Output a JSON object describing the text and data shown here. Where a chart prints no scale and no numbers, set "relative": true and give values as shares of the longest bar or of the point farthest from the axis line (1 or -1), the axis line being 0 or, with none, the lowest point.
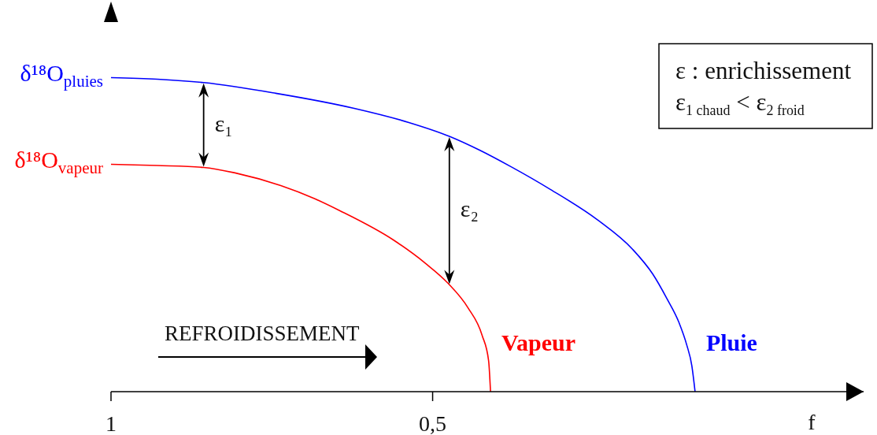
{
  "chart_data": {
    "type": "line",
    "relative": true,
    "xlabel": "f",
    "xlim": [
      1,
      -0.17
    ],
    "xticks": [
      1,
      {
        "value": 0.5,
        "label": "0,5"
      }
    ],
    "line_style": "solid",
    "series": [
      {
        "name": "Vapeur",
        "color": "#ff0000",
        "x": [
          1,
          0.928,
          0.856,
          0.806,
          0.736,
          0.683,
          0.644,
          0.561,
          0.512,
          0.476,
          0.445,
          0.423,
          0.413,
          0.41
        ],
        "values": [
          0.724,
          0.72,
          0.714,
          0.696,
          0.656,
          0.614,
          0.576,
          0.483,
          0.41,
          0.345,
          0.267,
          0.179,
          0.099,
          0
        ]
      },
      {
        "name": "Pluie",
        "color": "#0000ff",
        "x": [
          1,
          0.928,
          0.856,
          0.744,
          0.622,
          0.537,
          0.474,
          0.427,
          0.378,
          0.317,
          0.243,
          0.189,
          0.158,
          0.136,
          0.117,
          0.105,
          0.097,
          0.092
        ],
        "values": [
          1,
          0.995,
          0.984,
          0.95,
          0.902,
          0.857,
          0.813,
          0.769,
          0.716,
          0.644,
          0.546,
          0.453,
          0.375,
          0.297,
          0.22,
          0.149,
          0.082,
          0
        ]
      }
    ],
    "annotations": [
      {
        "text": "δ¹⁸O$_{pluies}$",
        "x": 1,
        "y": 1
      },
      {
        "text": "δ¹⁸O$_{vapeur}$",
        "x": 1,
        "y": 0.724
      },
      {
        "text": "ε₁",
        "x": 0.856,
        "y": 0.984
      },
      {
        "text": "ε₂",
        "x": 0.474,
        "y": 0.813
      },
      "REFROIDISSEMENT",
      "ε : enrichissement",
      "ε$_{1 chaud}$ < ε$_{2 froid}$"
    ]
  }
}
